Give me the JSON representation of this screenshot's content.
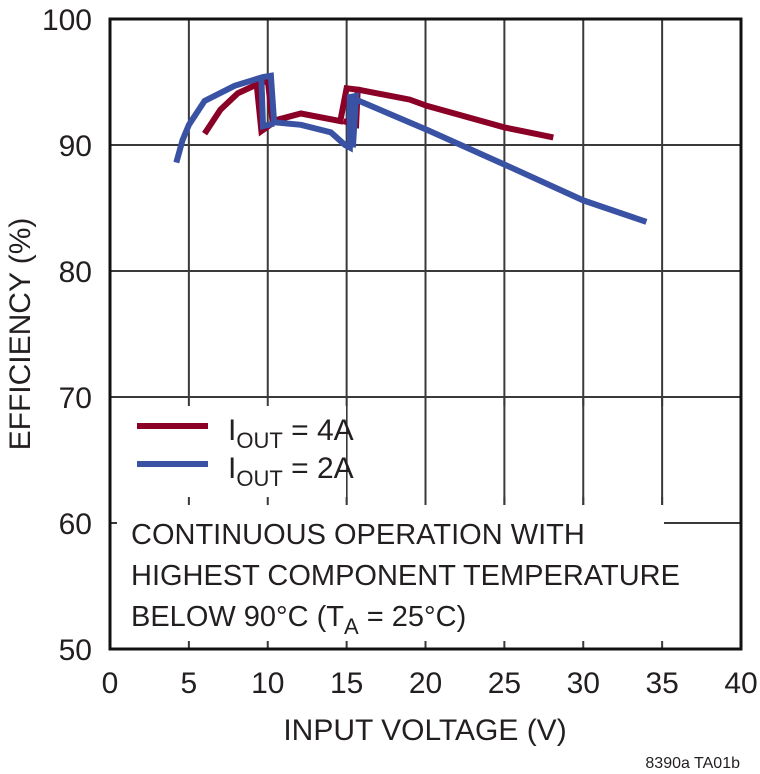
{
  "chart_data": {
    "type": "line",
    "title": "",
    "xlabel": "INPUT VOLTAGE (V)",
    "ylabel": "EFFICIENCY (%)",
    "xlim": [
      0,
      40
    ],
    "ylim": [
      50,
      100
    ],
    "xticks": [
      0,
      5,
      10,
      15,
      20,
      25,
      30,
      35,
      40
    ],
    "yticks": [
      50,
      60,
      70,
      80,
      90,
      100
    ],
    "grid": true,
    "legend_position": "lower-left inside",
    "series": [
      {
        "name": "IOUT = 4A",
        "label_main": "I",
        "label_sub": "OUT",
        "label_rest": " = 4A",
        "color": "#8b0027",
        "segments": [
          [
            [
              6.0,
              90.9
            ],
            [
              7.0,
              92.8
            ],
            [
              8.1,
              94.1
            ],
            [
              9.3,
              94.8
            ],
            [
              9.6,
              91.1
            ],
            [
              10.6,
              92.0
            ],
            [
              12.1,
              92.5
            ],
            [
              14.6,
              91.9
            ],
            [
              15.0,
              94.5
            ],
            [
              15.7,
              94.4
            ],
            [
              15.6,
              91.6
            ],
            [
              14.8,
              91.9
            ]
          ],
          [
            [
              9.3,
              94.8
            ],
            [
              10.0,
              95.1
            ],
            [
              10.3,
              91.9
            ]
          ],
          [
            [
              15.7,
              94.4
            ],
            [
              19.0,
              93.6
            ],
            [
              20.1,
              93.1
            ],
            [
              25.0,
              91.4
            ],
            [
              28.1,
              90.6
            ]
          ]
        ]
      },
      {
        "name": "IOUT = 2A",
        "label_main": "I",
        "label_sub": "OUT",
        "label_rest": " = 2A",
        "color": "#3a52a4",
        "segments": [
          [
            [
              4.2,
              88.6
            ],
            [
              4.6,
              90.4
            ],
            [
              5.0,
              91.6
            ],
            [
              6.0,
              93.5
            ],
            [
              7.9,
              94.7
            ],
            [
              9.7,
              95.4
            ],
            [
              10.2,
              95.5
            ],
            [
              10.4,
              91.8
            ],
            [
              12.1,
              91.6
            ],
            [
              14.0,
              91.0
            ],
            [
              14.9,
              90.0
            ],
            [
              15.2,
              89.8
            ],
            [
              15.2,
              93.8
            ],
            [
              15.6,
              93.9
            ],
            [
              15.4,
              89.8
            ]
          ],
          [
            [
              9.6,
              95.3
            ],
            [
              9.7,
              91.5
            ],
            [
              10.4,
              91.7
            ]
          ],
          [
            [
              15.6,
              93.6
            ],
            [
              20.1,
              91.2
            ],
            [
              25.1,
              88.4
            ],
            [
              30.0,
              85.6
            ],
            [
              34.0,
              83.9
            ]
          ]
        ]
      }
    ],
    "annotation": {
      "lines": [
        "CONTINUOUS OPERATION WITH",
        "HIGHEST COMPONENT TEMPERATURE"
      ],
      "line3_pre": "BELOW 90°C (T",
      "line3_sub": "A",
      "line3_post": " = 25°C)"
    },
    "footnote": "8390a TA01b"
  }
}
